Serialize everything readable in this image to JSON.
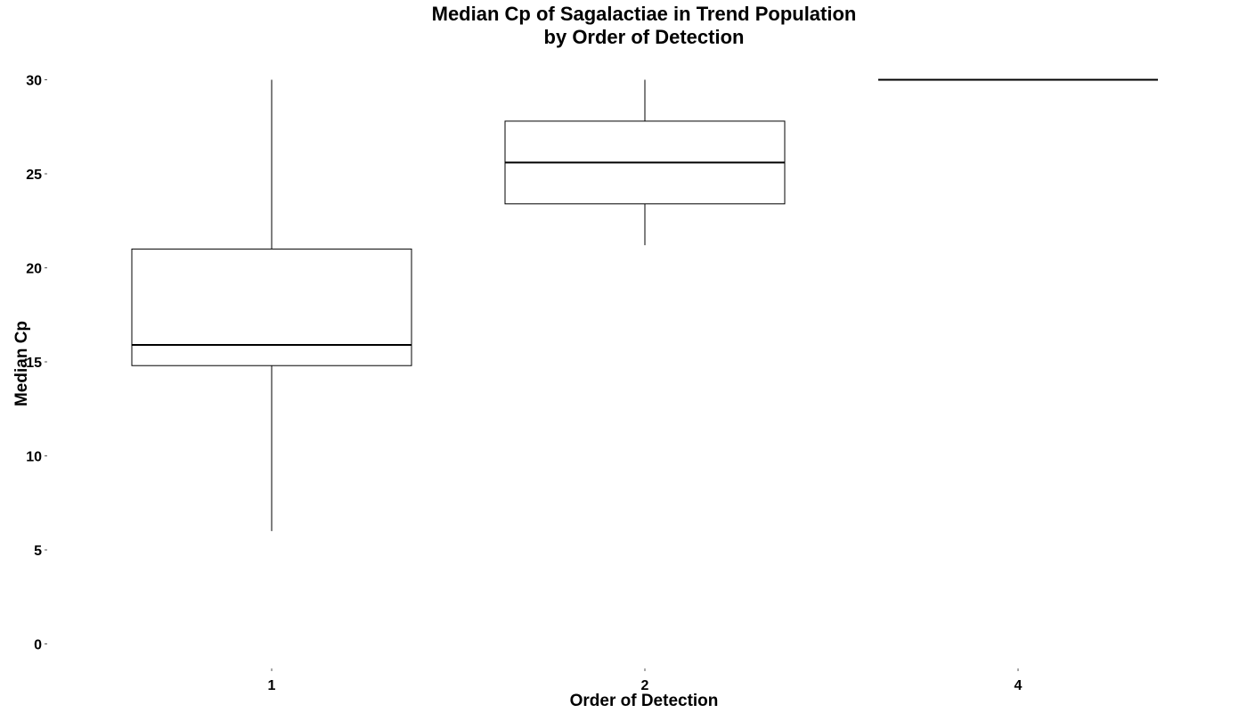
{
  "chart_data": {
    "type": "boxplot",
    "title_line1": "Median Cp of Sagalactiae in Trend Population",
    "title_line2": "by Order of Detection",
    "xlabel": "Order of Detection",
    "ylabel": "Median Cp",
    "ylim": [
      0,
      30
    ],
    "yticks": [
      0,
      5,
      10,
      15,
      20,
      25,
      30
    ],
    "grid": false,
    "categories": [
      "1",
      "2",
      "4"
    ],
    "boxes": [
      {
        "category": "1",
        "min": 6.0,
        "q1": 14.8,
        "median": 15.9,
        "q3": 21.0,
        "max": 30.0
      },
      {
        "category": "2",
        "min": 21.2,
        "q1": 23.4,
        "median": 25.6,
        "q3": 27.8,
        "max": 30.0
      },
      {
        "category": "4",
        "min": 30.0,
        "q1": 30.0,
        "median": 30.0,
        "q3": 30.0,
        "max": 30.0
      }
    ]
  }
}
